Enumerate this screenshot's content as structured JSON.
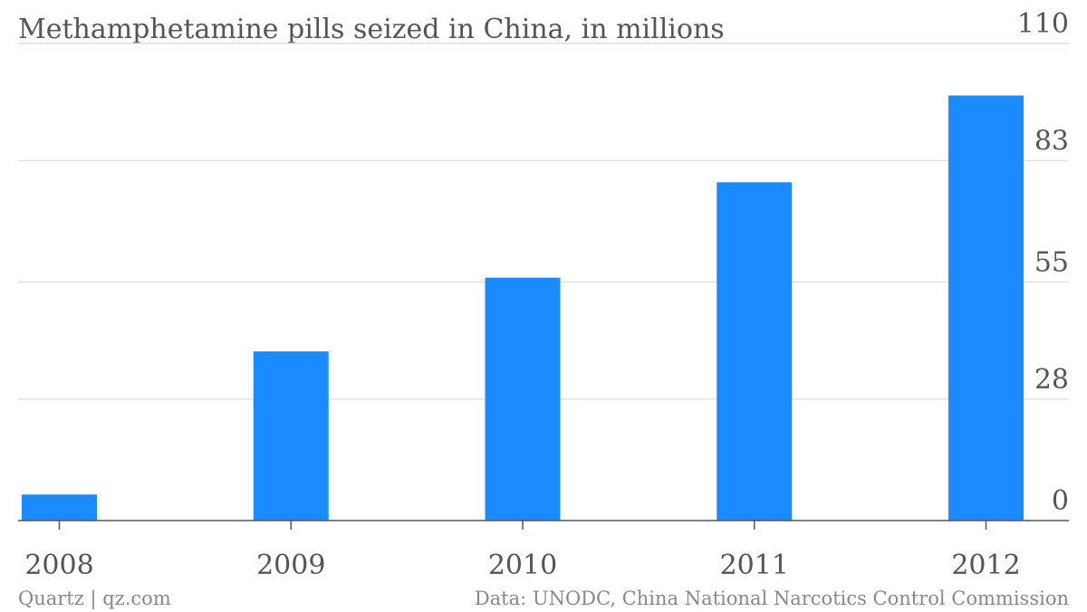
{
  "chart_data": {
    "type": "bar",
    "title": "Methamphetamine pills seized in China, in millions",
    "categories": [
      "2008",
      "2009",
      "2010",
      "2011",
      "2012"
    ],
    "series": [
      {
        "values": [
          6,
          39,
          56,
          78,
          98
        ]
      }
    ],
    "ylim": [
      0,
      110
    ],
    "y_ticks": [
      "0",
      "28",
      "55",
      "83",
      "110"
    ],
    "y_axis_side": "right",
    "grid": true,
    "bar_color": "#1a8cff"
  },
  "footer": {
    "source_left": "Quartz | qz.com",
    "source_right": "Data: UNODC, China National Narcotics Control Commission"
  }
}
